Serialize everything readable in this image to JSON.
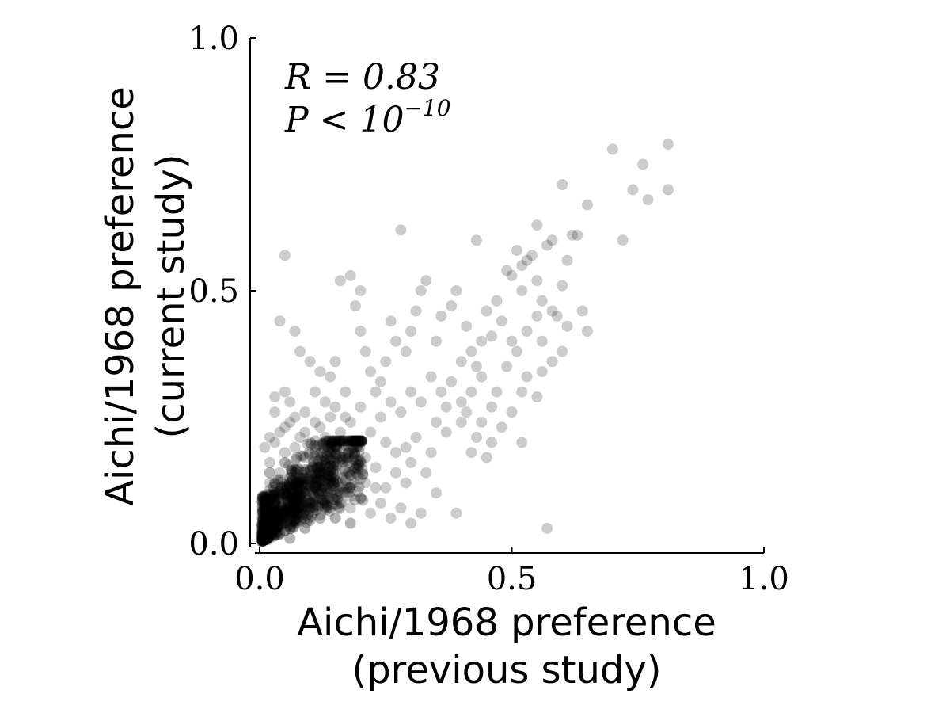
{
  "chart_data": {
    "type": "scatter",
    "xlabel_line1": "Aichi/1968 preference",
    "xlabel_line2": "(previous study)",
    "ylabel_line1": "Aichi/1968 preference",
    "ylabel_line2": "(current study)",
    "xlim": [
      0.0,
      1.0
    ],
    "ylim": [
      0.0,
      1.0
    ],
    "x_ticks": [
      "0.0",
      "0.5",
      "1.0"
    ],
    "y_ticks": [
      "0.0",
      "0.5",
      "1.0"
    ],
    "annotation": {
      "r_label": "R = 0.83",
      "p_label_prefix": "P < 10",
      "p_label_exponent": "−10"
    },
    "grid": false,
    "point_color": "#000000",
    "point_opacity": 0.2,
    "points": [
      [
        0.81,
        0.79
      ],
      [
        0.76,
        0.75
      ],
      [
        0.81,
        0.7
      ],
      [
        0.77,
        0.68
      ],
      [
        0.74,
        0.7
      ],
      [
        0.7,
        0.78
      ],
      [
        0.6,
        0.71
      ],
      [
        0.65,
        0.67
      ],
      [
        0.72,
        0.6
      ],
      [
        0.62,
        0.61
      ],
      [
        0.61,
        0.56
      ],
      [
        0.63,
        0.61
      ],
      [
        0.58,
        0.6
      ],
      [
        0.57,
        0.59
      ],
      [
        0.55,
        0.63
      ],
      [
        0.53,
        0.56
      ],
      [
        0.54,
        0.57
      ],
      [
        0.52,
        0.55
      ],
      [
        0.51,
        0.58
      ],
      [
        0.5,
        0.53
      ],
      [
        0.49,
        0.54
      ],
      [
        0.52,
        0.5
      ],
      [
        0.55,
        0.52
      ],
      [
        0.56,
        0.48
      ],
      [
        0.58,
        0.46
      ],
      [
        0.6,
        0.51
      ],
      [
        0.59,
        0.45
      ],
      [
        0.61,
        0.43
      ],
      [
        0.65,
        0.42
      ],
      [
        0.64,
        0.46
      ],
      [
        0.6,
        0.38
      ],
      [
        0.58,
        0.36
      ],
      [
        0.56,
        0.4
      ],
      [
        0.57,
        0.03
      ],
      [
        0.55,
        0.29
      ],
      [
        0.53,
        0.33
      ],
      [
        0.5,
        0.4
      ],
      [
        0.48,
        0.44
      ],
      [
        0.47,
        0.48
      ],
      [
        0.45,
        0.46
      ],
      [
        0.46,
        0.41
      ],
      [
        0.44,
        0.4
      ],
      [
        0.43,
        0.35
      ],
      [
        0.42,
        0.38
      ],
      [
        0.41,
        0.43
      ],
      [
        0.4,
        0.36
      ],
      [
        0.43,
        0.6
      ],
      [
        0.28,
        0.62
      ],
      [
        0.05,
        0.57
      ],
      [
        0.38,
        0.47
      ],
      [
        0.39,
        0.5
      ],
      [
        0.36,
        0.45
      ],
      [
        0.35,
        0.4
      ],
      [
        0.33,
        0.52
      ],
      [
        0.32,
        0.5
      ],
      [
        0.31,
        0.46
      ],
      [
        0.3,
        0.42
      ],
      [
        0.29,
        0.38
      ],
      [
        0.27,
        0.4
      ],
      [
        0.26,
        0.44
      ],
      [
        0.25,
        0.36
      ],
      [
        0.24,
        0.32
      ],
      [
        0.23,
        0.3
      ],
      [
        0.22,
        0.34
      ],
      [
        0.21,
        0.38
      ],
      [
        0.2,
        0.42
      ],
      [
        0.19,
        0.47
      ],
      [
        0.18,
        0.53
      ],
      [
        0.16,
        0.52
      ],
      [
        0.2,
        0.5
      ],
      [
        0.04,
        0.44
      ],
      [
        0.07,
        0.42
      ],
      [
        0.08,
        0.38
      ],
      [
        0.1,
        0.36
      ],
      [
        0.12,
        0.34
      ],
      [
        0.14,
        0.33
      ],
      [
        0.15,
        0.36
      ],
      [
        0.17,
        0.3
      ],
      [
        0.13,
        0.28
      ],
      [
        0.11,
        0.3
      ],
      [
        0.09,
        0.26
      ],
      [
        0.06,
        0.28
      ],
      [
        0.05,
        0.3
      ],
      [
        0.03,
        0.29
      ],
      [
        0.06,
        0.24
      ],
      [
        0.04,
        0.22
      ],
      [
        0.08,
        0.21
      ],
      [
        0.1,
        0.2
      ],
      [
        0.12,
        0.23
      ],
      [
        0.14,
        0.25
      ],
      [
        0.16,
        0.22
      ],
      [
        0.18,
        0.24
      ],
      [
        0.2,
        0.27
      ],
      [
        0.22,
        0.22
      ],
      [
        0.24,
        0.25
      ],
      [
        0.26,
        0.28
      ],
      [
        0.28,
        0.26
      ],
      [
        0.3,
        0.3
      ],
      [
        0.32,
        0.28
      ],
      [
        0.34,
        0.33
      ],
      [
        0.36,
        0.3
      ],
      [
        0.38,
        0.32
      ],
      [
        0.4,
        0.28
      ],
      [
        0.42,
        0.3
      ],
      [
        0.44,
        0.24
      ],
      [
        0.46,
        0.27
      ],
      [
        0.48,
        0.23
      ],
      [
        0.5,
        0.26
      ],
      [
        0.52,
        0.2
      ],
      [
        0.46,
        0.2
      ],
      [
        0.42,
        0.18
      ],
      [
        0.45,
        0.17
      ],
      [
        0.39,
        0.06
      ],
      [
        0.35,
        0.1
      ],
      [
        0.33,
        0.14
      ],
      [
        0.3,
        0.16
      ],
      [
        0.27,
        0.18
      ],
      [
        0.25,
        0.2
      ],
      [
        0.23,
        0.15
      ],
      [
        0.21,
        0.12
      ],
      [
        0.19,
        0.14
      ],
      [
        0.17,
        0.17
      ],
      [
        0.15,
        0.19
      ],
      [
        0.13,
        0.16
      ],
      [
        0.11,
        0.15
      ],
      [
        0.09,
        0.17
      ],
      [
        0.07,
        0.19
      ],
      [
        0.05,
        0.18
      ],
      [
        0.03,
        0.2
      ],
      [
        0.02,
        0.16
      ],
      [
        0.04,
        0.14
      ],
      [
        0.06,
        0.12
      ],
      [
        0.08,
        0.13
      ],
      [
        0.1,
        0.11
      ],
      [
        0.12,
        0.09
      ],
      [
        0.14,
        0.1
      ],
      [
        0.16,
        0.08
      ],
      [
        0.18,
        0.07
      ],
      [
        0.2,
        0.09
      ],
      [
        0.22,
        0.06
      ],
      [
        0.24,
        0.08
      ],
      [
        0.26,
        0.05
      ],
      [
        0.28,
        0.07
      ],
      [
        0.3,
        0.04
      ],
      [
        0.32,
        0.06
      ],
      [
        0.25,
        0.11
      ],
      [
        0.29,
        0.12
      ],
      [
        0.34,
        0.18
      ],
      [
        0.37,
        0.22
      ],
      [
        0.4,
        0.24
      ],
      [
        0.43,
        0.21
      ],
      [
        0.47,
        0.3
      ],
      [
        0.49,
        0.35
      ],
      [
        0.51,
        0.38
      ],
      [
        0.53,
        0.42
      ],
      [
        0.55,
        0.45
      ],
      [
        0.56,
        0.34
      ],
      [
        0.52,
        0.3
      ],
      [
        0.44,
        0.33
      ],
      [
        0.41,
        0.26
      ],
      [
        0.37,
        0.27
      ],
      [
        0.35,
        0.24
      ],
      [
        0.31,
        0.21
      ],
      [
        0.29,
        0.19
      ],
      [
        0.27,
        0.14
      ],
      [
        0.23,
        0.11
      ],
      [
        0.21,
        0.17
      ],
      [
        0.19,
        0.2
      ],
      [
        0.17,
        0.25
      ],
      [
        0.15,
        0.27
      ],
      [
        0.13,
        0.21
      ],
      [
        0.11,
        0.24
      ],
      [
        0.09,
        0.22
      ],
      [
        0.07,
        0.25
      ],
      [
        0.05,
        0.23
      ],
      [
        0.03,
        0.26
      ],
      [
        0.02,
        0.21
      ],
      [
        0.01,
        0.19
      ],
      [
        0.02,
        0.12
      ],
      [
        0.03,
        0.1
      ]
    ],
    "dense_cluster": {
      "description_points": [
        [
          0.01,
          0.02
        ],
        [
          0.02,
          0.05
        ],
        [
          0.03,
          0.08
        ],
        [
          0.05,
          0.04
        ],
        [
          0.07,
          0.06
        ],
        [
          0.04,
          0.1
        ],
        [
          0.06,
          0.13
        ],
        [
          0.08,
          0.09
        ],
        [
          0.1,
          0.07
        ],
        [
          0.12,
          0.05
        ],
        [
          0.09,
          0.03
        ],
        [
          0.11,
          0.11
        ],
        [
          0.02,
          0.14
        ],
        [
          0.04,
          0.02
        ],
        [
          0.06,
          0.01
        ],
        [
          0.13,
          0.08
        ],
        [
          0.15,
          0.05
        ],
        [
          0.14,
          0.12
        ],
        [
          0.16,
          0.1
        ],
        [
          0.18,
          0.04
        ],
        [
          0.01,
          0.08
        ],
        [
          0.03,
          0.12
        ],
        [
          0.05,
          0.16
        ],
        [
          0.07,
          0.14
        ]
      ]
    }
  }
}
